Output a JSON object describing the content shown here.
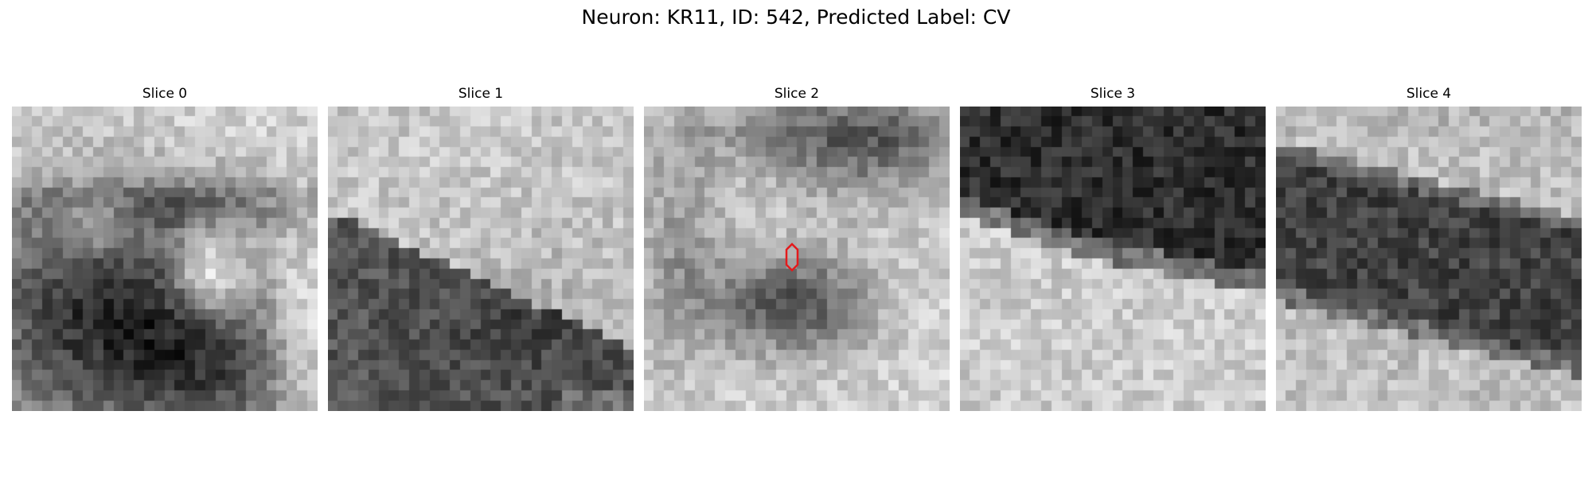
{
  "figure": {
    "title": "Neuron: KR11, ID: 542, Predicted Label: CV",
    "marker_color": "#e41a1c"
  },
  "slices": [
    {
      "title": "Slice 0",
      "scene": "dark-blob-with-bright-spot"
    },
    {
      "title": "Slice 1",
      "scene": "dark-band-upper-left-to-lower-right"
    },
    {
      "title": "Slice 2",
      "scene": "bright-field-with-central-dark-blob",
      "has_marker": true
    },
    {
      "title": "Slice 3",
      "scene": "dark-band-top"
    },
    {
      "title": "Slice 4",
      "scene": "dark-diagonal-band"
    }
  ]
}
